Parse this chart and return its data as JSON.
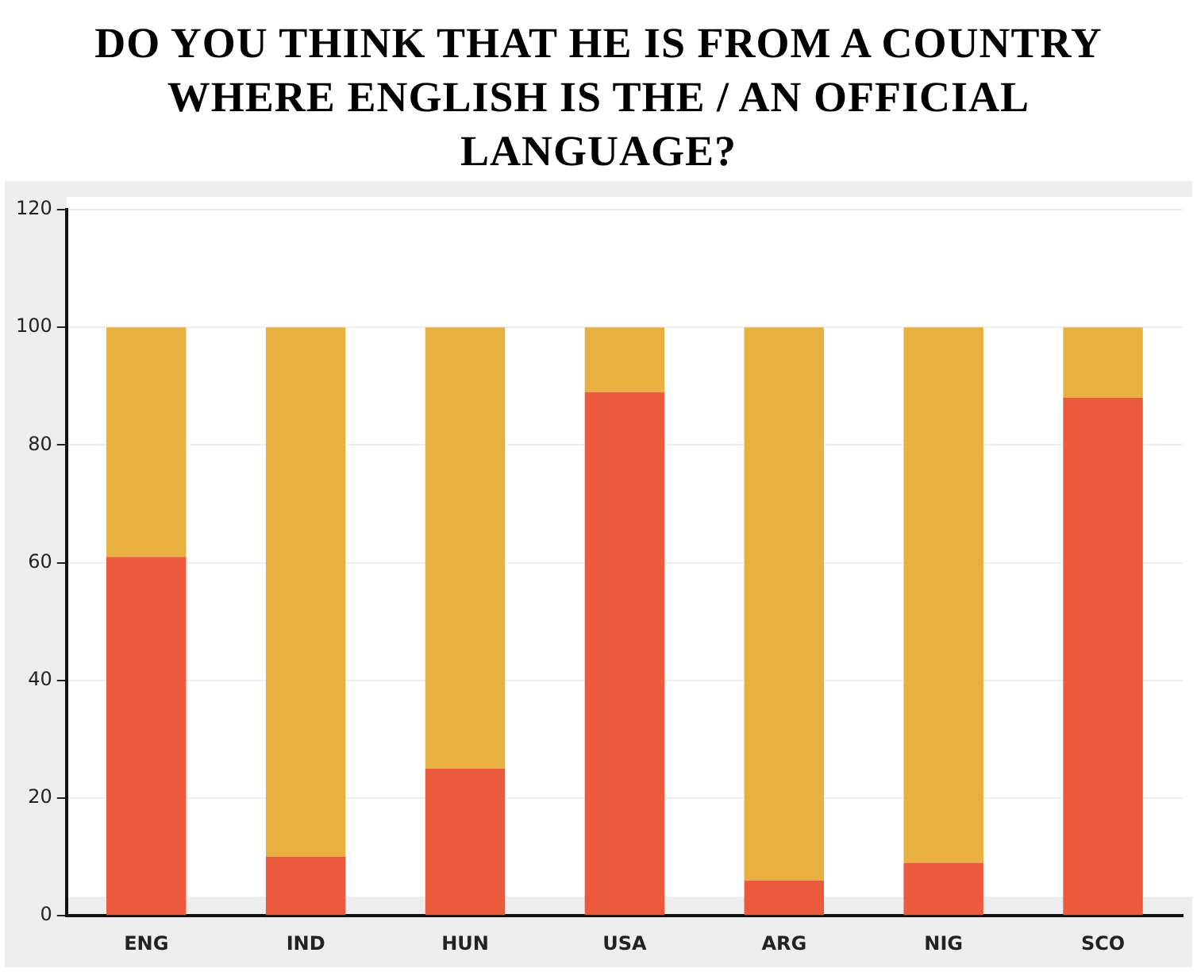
{
  "chart_data": {
    "type": "bar",
    "title": "DO YOU THINK THAT HE IS FROM A COUNTRY WHERE ENGLISH IS THE / AN OFFICIAL LANGUAGE?",
    "categories": [
      "ENG",
      "IND",
      "HUN",
      "USA",
      "ARG",
      "NIG",
      "SCO"
    ],
    "stacked": true,
    "series": [
      {
        "color": "#eb5a3a",
        "values": [
          61,
          10,
          25,
          89,
          6,
          9,
          88
        ]
      },
      {
        "color": "#e8b040",
        "values": [
          39,
          90,
          75,
          11,
          94,
          91,
          12
        ]
      }
    ],
    "ylim": [
      0,
      120
    ],
    "yticks": [
      0,
      20,
      40,
      60,
      80,
      100,
      120
    ],
    "grid": "y"
  }
}
